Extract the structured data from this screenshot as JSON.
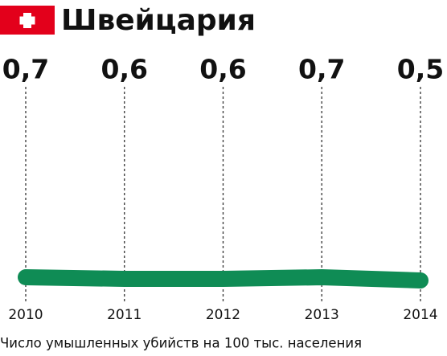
{
  "chart_data": {
    "type": "line",
    "title": "Швейцария",
    "caption": "Число умышленных убийств на 100 тыс. населения",
    "x": [
      2010,
      2011,
      2012,
      2013,
      2014
    ],
    "values": [
      0.7,
      0.6,
      0.6,
      0.7,
      0.5
    ],
    "value_labels": [
      "0,7",
      "0,6",
      "0,6",
      "0,7",
      "0,5"
    ],
    "color": "#0f8c55",
    "xlim": [
      2010,
      2014
    ],
    "xticks": [
      2010,
      2011,
      2012,
      2013,
      2014
    ],
    "ylim": [
      0,
      15
    ]
  }
}
